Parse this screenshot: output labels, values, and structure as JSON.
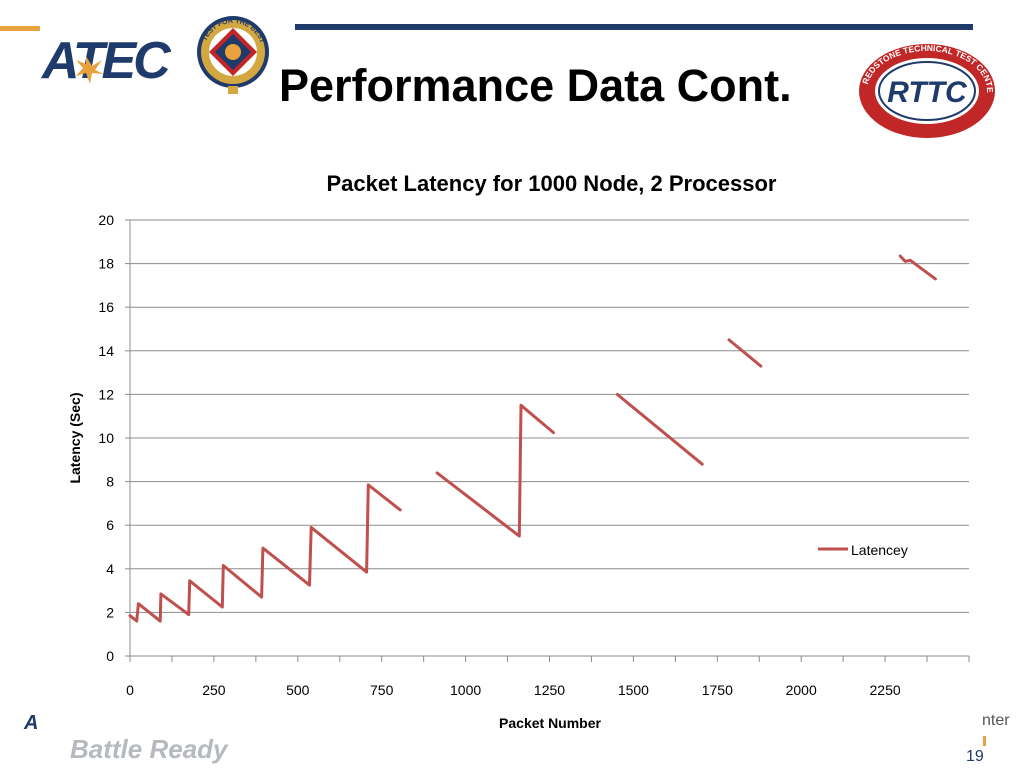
{
  "slide": {
    "title": "Performance Data Cont.",
    "page_number": "19",
    "footer_left_fragment": "A",
    "footer_faded_text": "Battle Ready",
    "footer_right_fragment": "nter"
  },
  "logos": {
    "atec_text": "ATEC",
    "seal_text": "TEST FOR THE BEST",
    "rttc_text": "RTTC",
    "rttc_ring_text": "REDSTONE TECHNICAL TEST CENTER"
  },
  "colors": {
    "series_line": "#c0504d",
    "gridline": "#8c8c8c",
    "navy": "#1f3b6b",
    "orange": "#e9a23b",
    "rttc_red": "#c22727"
  },
  "chart_data": {
    "type": "line",
    "title": "Packet Latency for 1000 Node, 2 Processor",
    "xlabel": "Packet Number",
    "ylabel": "Latency (Sec)",
    "xlim": [
      0,
      2500
    ],
    "ylim": [
      0,
      20
    ],
    "x_ticks": [
      0,
      250,
      500,
      750,
      1000,
      1250,
      1500,
      1750,
      2000,
      2250
    ],
    "y_ticks": [
      0,
      2,
      4,
      6,
      8,
      10,
      12,
      14,
      16,
      18,
      20
    ],
    "grid": "horizontal",
    "legend_position": "right",
    "series": [
      {
        "name": "Latencey",
        "segments": [
          [
            [
              0,
              1.85
            ],
            [
              20,
              1.6
            ],
            [
              25,
              2.4
            ],
            [
              90,
              1.6
            ],
            [
              92,
              2.85
            ],
            [
              175,
              1.9
            ],
            [
              178,
              3.45
            ],
            [
              275,
              2.25
            ],
            [
              278,
              4.15
            ],
            [
              392,
              2.7
            ],
            [
              396,
              4.95
            ],
            [
              535,
              3.25
            ],
            [
              540,
              5.9
            ],
            [
              705,
              3.85
            ],
            [
              710,
              7.85
            ],
            [
              805,
              6.7
            ]
          ],
          [
            [
              915,
              8.4
            ],
            [
              1160,
              5.5
            ],
            [
              1165,
              11.5
            ],
            [
              1262,
              10.25
            ]
          ],
          [
            [
              1452,
              12.0
            ],
            [
              1705,
              8.8
            ]
          ],
          [
            [
              1785,
              14.5
            ],
            [
              1880,
              13.3
            ]
          ],
          [
            [
              2295,
              18.35
            ],
            [
              2310,
              18.1
            ],
            [
              2325,
              18.15
            ],
            [
              2400,
              17.3
            ]
          ]
        ]
      }
    ]
  }
}
